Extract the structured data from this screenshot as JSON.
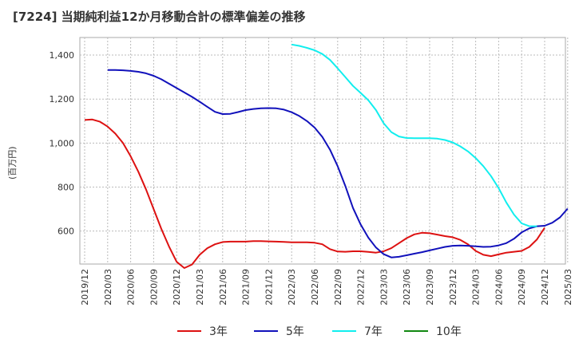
{
  "chart_data": {
    "type": "line",
    "title": "[7224]  当期純利益12か月移動合計の標準偏差の推移",
    "ylabel": "(百万円)",
    "xlabel": "",
    "ylim": [
      450,
      1480
    ],
    "yticks": [
      600,
      800,
      1000,
      1200,
      1400
    ],
    "ytick_labels": [
      "600",
      "800",
      "1,000",
      "1,200",
      "1,400"
    ],
    "xticks": [
      "2019/12",
      "2020/03",
      "2020/06",
      "2020/09",
      "2020/12",
      "2021/03",
      "2021/06",
      "2021/09",
      "2021/12",
      "2022/03",
      "2022/06",
      "2022/09",
      "2022/12",
      "2023/03",
      "2023/06",
      "2023/09",
      "2023/12",
      "2024/03",
      "2024/06",
      "2024/09",
      "2024/12",
      "2025/03"
    ],
    "grid": true,
    "legend_position": "bottom",
    "series": [
      {
        "name": "3年",
        "color": "#dd1111",
        "start": "2019/12",
        "values": [
          1105,
          1107,
          1097,
          1075,
          1043,
          1000,
          940,
          870,
          790,
          700,
          610,
          530,
          460,
          432,
          448,
          492,
          522,
          540,
          550,
          552,
          552,
          552,
          554,
          554,
          553,
          552,
          551,
          549,
          549,
          549,
          547,
          540,
          518,
          507,
          506,
          508,
          508,
          505,
          502,
          508,
          522,
          545,
          568,
          585,
          592,
          590,
          584,
          577,
          572,
          560,
          540,
          510,
          492,
          486,
          494,
          502,
          506,
          510,
          528,
          562,
          615
        ]
      },
      {
        "name": "5年",
        "color": "#1111bb",
        "start": "2020/03",
        "values": [
          1332,
          1332,
          1331,
          1328,
          1324,
          1317,
          1306,
          1290,
          1270,
          1250,
          1230,
          1210,
          1188,
          1165,
          1142,
          1132,
          1133,
          1141,
          1150,
          1155,
          1158,
          1159,
          1158,
          1152,
          1140,
          1123,
          1100,
          1070,
          1028,
          970,
          895,
          805,
          705,
          630,
          570,
          525,
          495,
          480,
          483,
          490,
          497,
          504,
          512,
          520,
          528,
          533,
          534,
          533,
          531,
          528,
          529,
          535,
          545,
          565,
          594,
          612,
          622,
          624,
          638,
          662,
          702
        ]
      },
      {
        "name": "7年",
        "color": "#11eeee",
        "start": "2022/03",
        "values": [
          1448,
          1442,
          1433,
          1422,
          1405,
          1378,
          1340,
          1300,
          1260,
          1228,
          1195,
          1150,
          1090,
          1050,
          1030,
          1023,
          1022,
          1022,
          1022,
          1020,
          1014,
          1003,
          985,
          962,
          932,
          895,
          850,
          795,
          730,
          675,
          635,
          622,
          622
        ]
      },
      {
        "name": "10年",
        "color": "#118811",
        "start": "2025/03",
        "values": []
      }
    ]
  }
}
